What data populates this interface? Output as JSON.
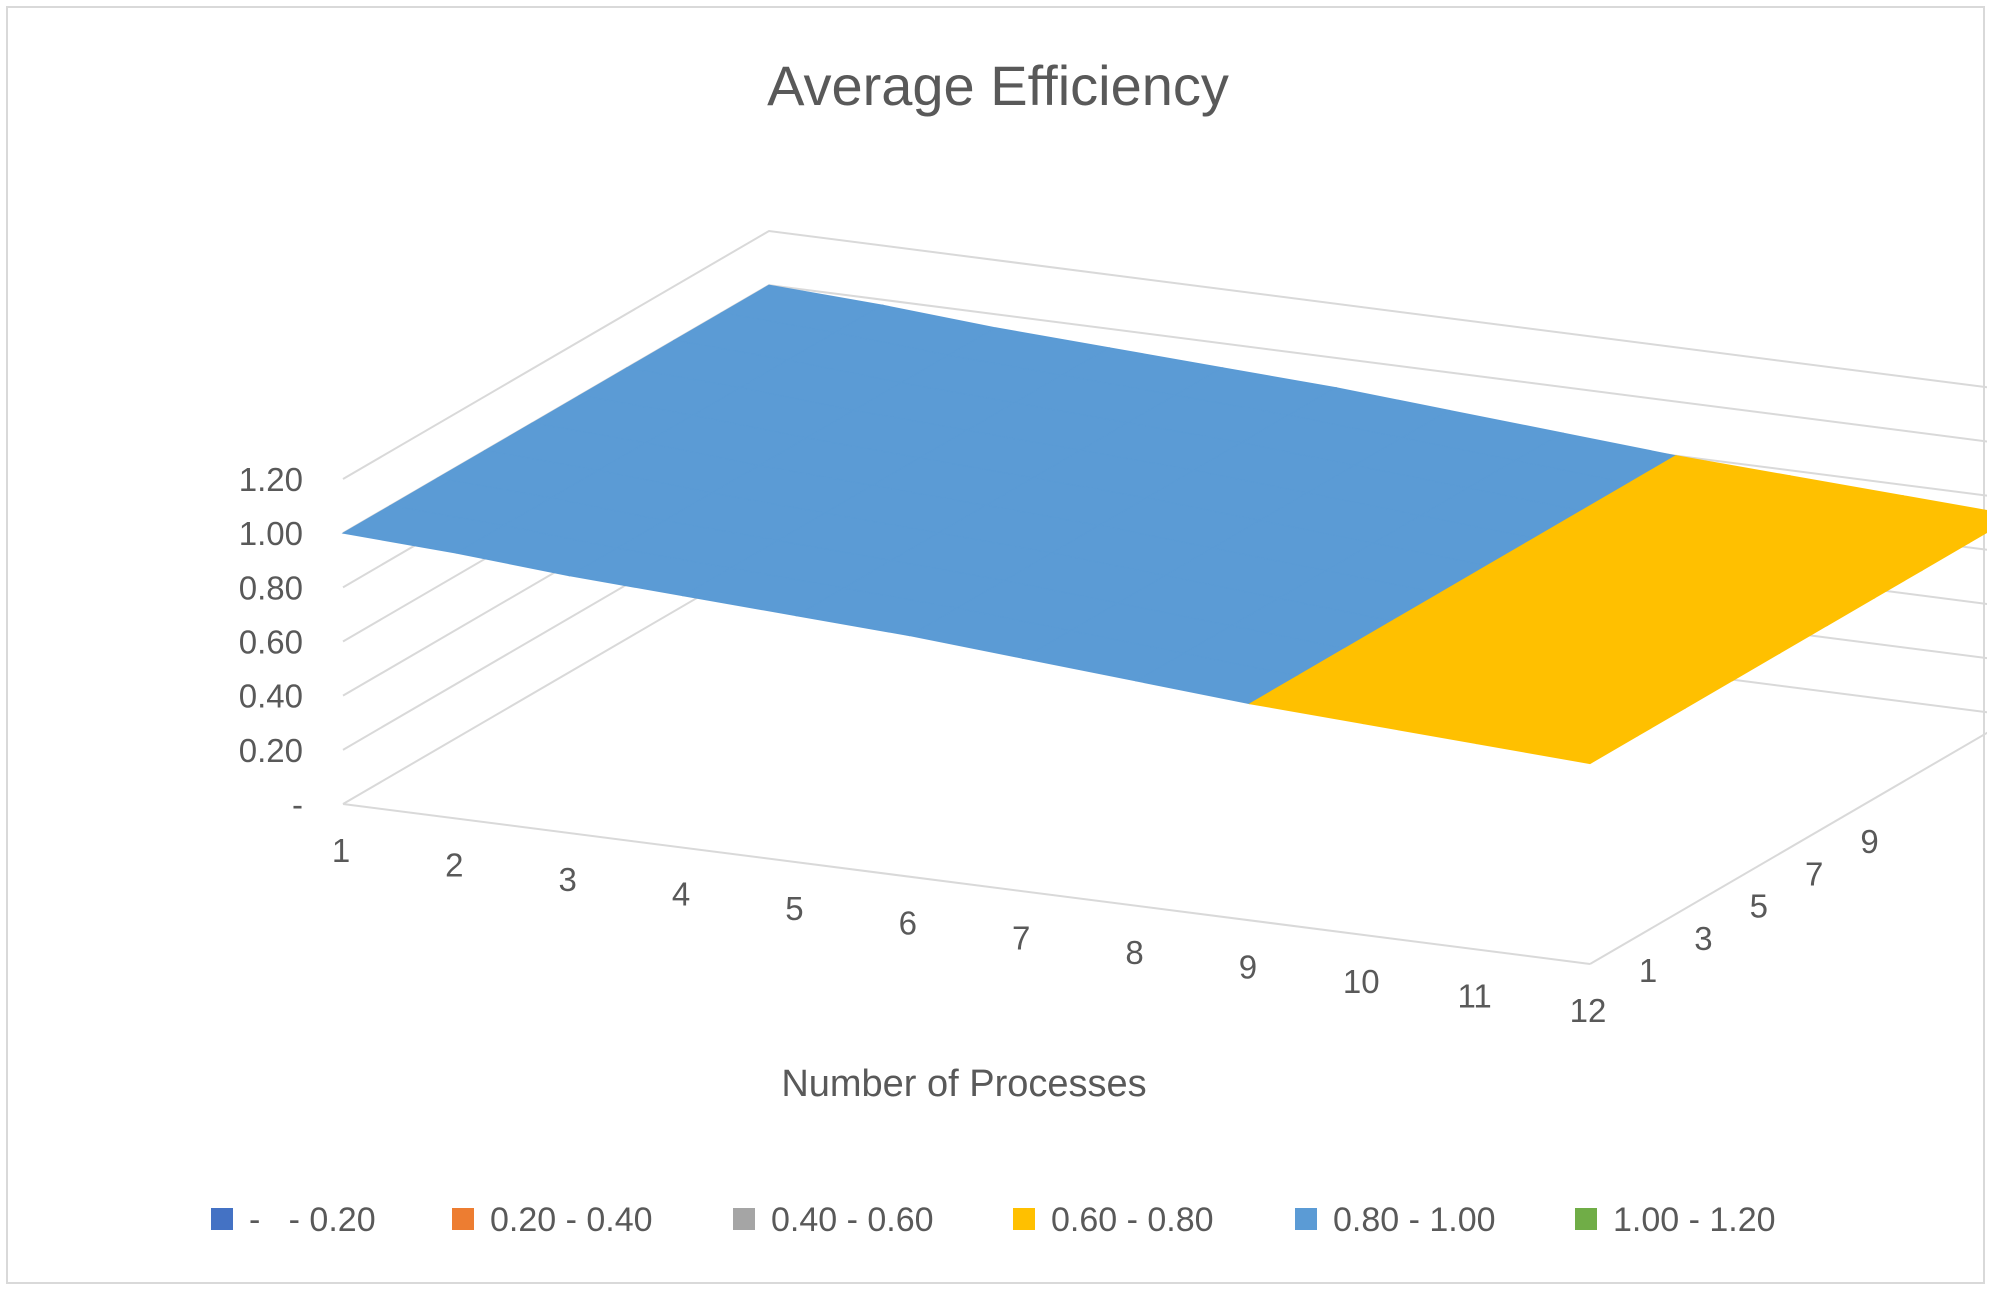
{
  "chart_data": {
    "type": "surface",
    "title": "Average Efficiency",
    "xlabel": "Number of Processes",
    "ylabel": "",
    "zlabel": "",
    "x": [
      "1",
      "2",
      "3",
      "4",
      "5",
      "6",
      "7",
      "8",
      "9",
      "10",
      "11",
      "12"
    ],
    "depth_tick_labels": [
      "1",
      "3",
      "5",
      "7",
      "9"
    ],
    "z_tick_labels": [
      "-",
      "0.20",
      "0.40",
      "0.60",
      "0.80",
      "1.00",
      "1.20"
    ],
    "zlim": [
      0,
      1.2
    ],
    "grid": true,
    "legend_position": "bottom",
    "bands": [
      {
        "label": "-   - 0.20",
        "color": "#4472C4"
      },
      {
        "label": "0.20 - 0.40",
        "color": "#ED7D31"
      },
      {
        "label": "0.40 - 0.60",
        "color": "#A5A5A5"
      },
      {
        "label": "0.60 - 0.80",
        "color": "#FFC000"
      },
      {
        "label": "0.80 - 1.00",
        "color": "#5B9BD5"
      },
      {
        "label": "1.00 - 1.20",
        "color": "#70AD47"
      }
    ],
    "series": [
      {
        "values": [
          1.0,
          0.98,
          0.95,
          0.93,
          0.91,
          0.89,
          0.86,
          0.83,
          0.8,
          0.78,
          0.76,
          0.74
        ]
      },
      {
        "values": [
          1.0,
          0.98,
          0.95,
          0.93,
          0.91,
          0.89,
          0.86,
          0.83,
          0.8,
          0.78,
          0.76,
          0.74
        ]
      },
      {
        "values": [
          1.0,
          0.98,
          0.95,
          0.93,
          0.91,
          0.89,
          0.86,
          0.83,
          0.8,
          0.78,
          0.76,
          0.74
        ]
      },
      {
        "values": [
          1.0,
          0.98,
          0.95,
          0.93,
          0.91,
          0.89,
          0.86,
          0.83,
          0.8,
          0.78,
          0.76,
          0.74
        ]
      },
      {
        "values": [
          1.0,
          0.98,
          0.95,
          0.93,
          0.91,
          0.89,
          0.86,
          0.83,
          0.8,
          0.78,
          0.76,
          0.74
        ]
      },
      {
        "values": [
          1.0,
          0.98,
          0.95,
          0.93,
          0.91,
          0.89,
          0.86,
          0.83,
          0.8,
          0.78,
          0.76,
          0.74
        ]
      },
      {
        "values": [
          1.0,
          0.98,
          0.95,
          0.93,
          0.91,
          0.89,
          0.86,
          0.83,
          0.8,
          0.78,
          0.76,
          0.74
        ]
      },
      {
        "values": [
          1.0,
          0.98,
          0.95,
          0.93,
          0.91,
          0.89,
          0.86,
          0.83,
          0.8,
          0.78,
          0.76,
          0.74
        ]
      },
      {
        "values": [
          1.0,
          0.98,
          0.95,
          0.93,
          0.91,
          0.89,
          0.86,
          0.83,
          0.8,
          0.78,
          0.76,
          0.74
        ]
      },
      {
        "values": [
          1.0,
          0.98,
          0.95,
          0.93,
          0.91,
          0.89,
          0.86,
          0.83,
          0.8,
          0.78,
          0.76,
          0.74
        ]
      }
    ]
  }
}
